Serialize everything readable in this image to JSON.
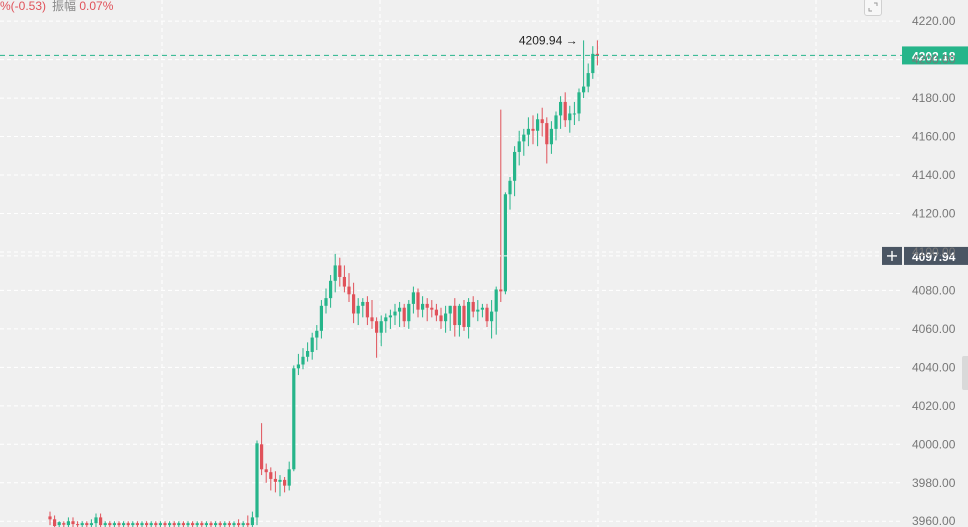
{
  "header": {
    "change_text": "%(-0.53)",
    "amplitude_label": "振幅",
    "amplitude_value": "0.07%"
  },
  "colors": {
    "up": "#26b58a",
    "down": "#e0525a",
    "last_price_line": "#26b58a",
    "crosshair_tag": "#4a5563",
    "grid": "#ffffff",
    "axis_text": "#777777"
  },
  "chart_data": {
    "type": "candlestick",
    "ylim": [
      3957,
      4231
    ],
    "y_ticks": [
      "3960.00",
      "3980.00",
      "4000.00",
      "4020.00",
      "4040.00",
      "4060.00",
      "4080.00",
      "4100.00",
      "4120.00",
      "4140.00",
      "4160.00",
      "4180.00",
      "4200.00",
      "4220.00"
    ],
    "last_price": "4202.18",
    "crosshair_price": "4097.94",
    "max_label": "4209.94",
    "max_value": 4209.94,
    "candles": [
      [
        3962.5,
        3965,
        3958,
        3961
      ],
      [
        3961,
        3963,
        3957,
        3957.5
      ],
      [
        3958,
        3960,
        3957,
        3959.5
      ],
      [
        3959,
        3960,
        3957,
        3958.2
      ],
      [
        3958,
        3962,
        3957,
        3960
      ],
      [
        3960,
        3962,
        3957,
        3958.5
      ],
      [
        3958.5,
        3960,
        3957,
        3958
      ],
      [
        3958,
        3960,
        3957,
        3959
      ],
      [
        3959,
        3960,
        3957,
        3958
      ],
      [
        3958,
        3961,
        3957,
        3959
      ],
      [
        3959,
        3964,
        3957,
        3962
      ],
      [
        3962,
        3964,
        3957,
        3958
      ],
      [
        3958,
        3960,
        3957,
        3959
      ],
      [
        3959,
        3960,
        3957,
        3958
      ],
      [
        3958,
        3960,
        3957,
        3959
      ],
      [
        3959,
        3960,
        3957,
        3958
      ],
      [
        3958,
        3960,
        3957,
        3959
      ],
      [
        3959,
        3960,
        3957,
        3958
      ],
      [
        3958,
        3960,
        3957,
        3959
      ],
      [
        3959,
        3960,
        3957,
        3958
      ],
      [
        3958,
        3960,
        3957,
        3959
      ],
      [
        3959,
        3960,
        3957,
        3958
      ],
      [
        3958,
        3960,
        3957,
        3959
      ],
      [
        3959,
        3960,
        3957,
        3958
      ],
      [
        3958,
        3960,
        3957,
        3959
      ],
      [
        3959,
        3960,
        3957,
        3958
      ],
      [
        3958,
        3960,
        3957,
        3959
      ],
      [
        3959,
        3960,
        3957,
        3958
      ],
      [
        3958,
        3960,
        3957,
        3959
      ],
      [
        3959,
        3960,
        3957,
        3958
      ],
      [
        3958,
        3960,
        3957,
        3959
      ],
      [
        3959,
        3960,
        3957,
        3958
      ],
      [
        3958,
        3960,
        3957,
        3959
      ],
      [
        3959,
        3960,
        3957,
        3958
      ],
      [
        3958,
        3960,
        3957,
        3959
      ],
      [
        3959,
        3960,
        3957,
        3958
      ],
      [
        3958,
        3960,
        3957,
        3959
      ],
      [
        3959,
        3960,
        3957,
        3958
      ],
      [
        3958,
        3960,
        3957,
        3959
      ],
      [
        3959,
        3960,
        3957,
        3958
      ],
      [
        3958,
        3960,
        3957,
        3959
      ],
      [
        3959,
        3961,
        3957,
        3958
      ],
      [
        3958,
        3960,
        3957,
        3959
      ],
      [
        3959,
        3963,
        3957,
        3958
      ],
      [
        3958,
        3965,
        3957,
        3962
      ],
      [
        3962,
        4002,
        3958,
        4000.5
      ],
      [
        4000,
        4011,
        3984,
        3987
      ],
      [
        3987,
        3990,
        3980,
        3985.5
      ],
      [
        3985.5,
        3988,
        3976,
        3982
      ],
      [
        3982,
        3986,
        3975,
        3980.5
      ],
      [
        3980.5,
        3984,
        3973,
        3981.5
      ],
      [
        3981.5,
        3983,
        3975,
        3978.5
      ],
      [
        3978.5,
        3991,
        3976,
        3987
      ],
      [
        3987,
        4041,
        3986,
        4039.5
      ],
      [
        4039.5,
        4047,
        4036,
        4041.5
      ],
      [
        4041.5,
        4050,
        4039,
        4045.5
      ],
      [
        4045.5,
        4053,
        4043,
        4048.5
      ],
      [
        4048,
        4058,
        4044,
        4055.5
      ],
      [
        4055.5,
        4062,
        4049,
        4059
      ],
      [
        4059,
        4075,
        4055,
        4072
      ],
      [
        4072,
        4081,
        4068,
        4076
      ],
      [
        4076,
        4088,
        4071,
        4085
      ],
      [
        4085,
        4099,
        4079,
        4093
      ],
      [
        4093,
        4097,
        4082,
        4087
      ],
      [
        4087,
        4093,
        4079,
        4082
      ],
      [
        4082,
        4089,
        4074,
        4078
      ],
      [
        4078,
        4084,
        4063,
        4068
      ],
      [
        4068,
        4076,
        4062,
        4072
      ],
      [
        4072,
        4076,
        4066,
        4074
      ],
      [
        4074,
        4077,
        4062,
        4066
      ],
      [
        4066,
        4075,
        4060,
        4064
      ],
      [
        4064,
        4066,
        4045,
        4058
      ],
      [
        4058,
        4067,
        4051,
        4064
      ],
      [
        4064,
        4068,
        4058,
        4066
      ],
      [
        4066,
        4070,
        4060,
        4067
      ],
      [
        4067,
        4073,
        4062,
        4069
      ],
      [
        4069,
        4074,
        4061,
        4071
      ],
      [
        4071,
        4073,
        4061,
        4064
      ],
      [
        4064,
        4075,
        4060,
        4073
      ],
      [
        4073,
        4082,
        4068,
        4079
      ],
      [
        4079,
        4081,
        4066,
        4070
      ],
      [
        4070,
        4077,
        4066,
        4073
      ],
      [
        4073,
        4076,
        4064,
        4071
      ],
      [
        4071,
        4075,
        4066,
        4070
      ],
      [
        4070,
        4073,
        4064,
        4067
      ],
      [
        4067,
        4071,
        4060,
        4064
      ],
      [
        4064,
        4072,
        4058,
        4068
      ],
      [
        4068,
        4072,
        4059,
        4072
      ],
      [
        4072,
        4076,
        4056,
        4062
      ],
      [
        4062,
        4073,
        4056,
        4072
      ],
      [
        4072,
        4075,
        4059,
        4061
      ],
      [
        4061,
        4076,
        4055,
        4074
      ],
      [
        4074,
        4077,
        4066,
        4069
      ],
      [
        4069,
        4075,
        4064,
        4070
      ],
      [
        4070,
        4073,
        4066,
        4071
      ],
      [
        4071,
        4073,
        4061,
        4064
      ],
      [
        4064,
        4075,
        4055,
        4069
      ],
      [
        4069,
        4082,
        4057,
        4080.5
      ],
      [
        4080.5,
        4174,
        4074,
        4079.5
      ],
      [
        4079.5,
        4131,
        4078,
        4130
      ],
      [
        4130,
        4139,
        4122,
        4137
      ],
      [
        4137,
        4155,
        4129,
        4152
      ],
      [
        4152,
        4163,
        4145,
        4157.5
      ],
      [
        4157.5,
        4164,
        4150,
        4161
      ],
      [
        4161,
        4170,
        4155,
        4164
      ],
      [
        4164,
        4171,
        4156,
        4163
      ],
      [
        4163,
        4172,
        4155,
        4169
      ],
      [
        4169,
        4175,
        4160,
        4167
      ],
      [
        4167,
        4170,
        4146,
        4156
      ],
      [
        4156,
        4168,
        4151,
        4164
      ],
      [
        4164,
        4173,
        4158,
        4171
      ],
      [
        4171,
        4181,
        4164,
        4178
      ],
      [
        4178,
        4183,
        4165,
        4168.5
      ],
      [
        4168.5,
        4176,
        4162,
        4172
      ],
      [
        4172,
        4178,
        4166,
        4172
      ],
      [
        4172,
        4185,
        4168,
        4183
      ],
      [
        4183,
        4210,
        4180,
        4186
      ],
      [
        4186,
        4198,
        4183,
        4193
      ],
      [
        4193,
        4207,
        4190,
        4203
      ],
      [
        4203,
        4210,
        4197,
        4202.18
      ]
    ]
  }
}
